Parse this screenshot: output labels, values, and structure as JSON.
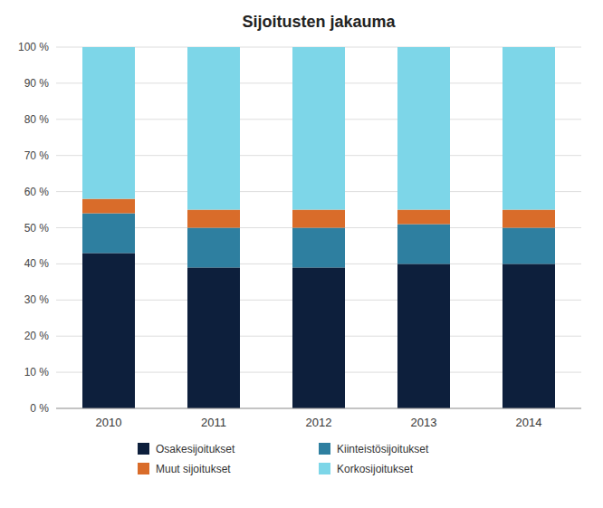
{
  "chart_data": {
    "type": "bar",
    "stacked": true,
    "title": "Sijoitusten jakauma",
    "categories": [
      "2010",
      "2011",
      "2012",
      "2013",
      "2014"
    ],
    "series": [
      {
        "name": "Osakesijoitukset",
        "color": "#0d1f3c",
        "values": [
          43,
          39,
          39,
          40,
          40
        ]
      },
      {
        "name": "Kiinteistösijoitukset",
        "color": "#2e7fa0",
        "values": [
          11,
          11,
          11,
          11,
          10
        ]
      },
      {
        "name": "Muut sijoitukset",
        "color": "#d96c2a",
        "values": [
          4,
          5,
          5,
          4,
          5
        ]
      },
      {
        "name": "Korkosijoitukset",
        "color": "#7dd6e8",
        "values": [
          42,
          45,
          45,
          45,
          45
        ]
      }
    ],
    "ylim": [
      0,
      100
    ],
    "yticks": [
      {
        "value": 0,
        "label": "0 %"
      },
      {
        "value": 10,
        "label": "10 %"
      },
      {
        "value": 20,
        "label": "20 %"
      },
      {
        "value": 30,
        "label": "30 %"
      },
      {
        "value": 40,
        "label": "40 %"
      },
      {
        "value": 50,
        "label": "50 %"
      },
      {
        "value": 60,
        "label": "60 %"
      },
      {
        "value": 70,
        "label": "70 %"
      },
      {
        "value": 80,
        "label": "80 %"
      },
      {
        "value": 90,
        "label": "90 %"
      },
      {
        "value": 100,
        "label": "100 %"
      }
    ],
    "grid": true,
    "legend": "bottom"
  }
}
